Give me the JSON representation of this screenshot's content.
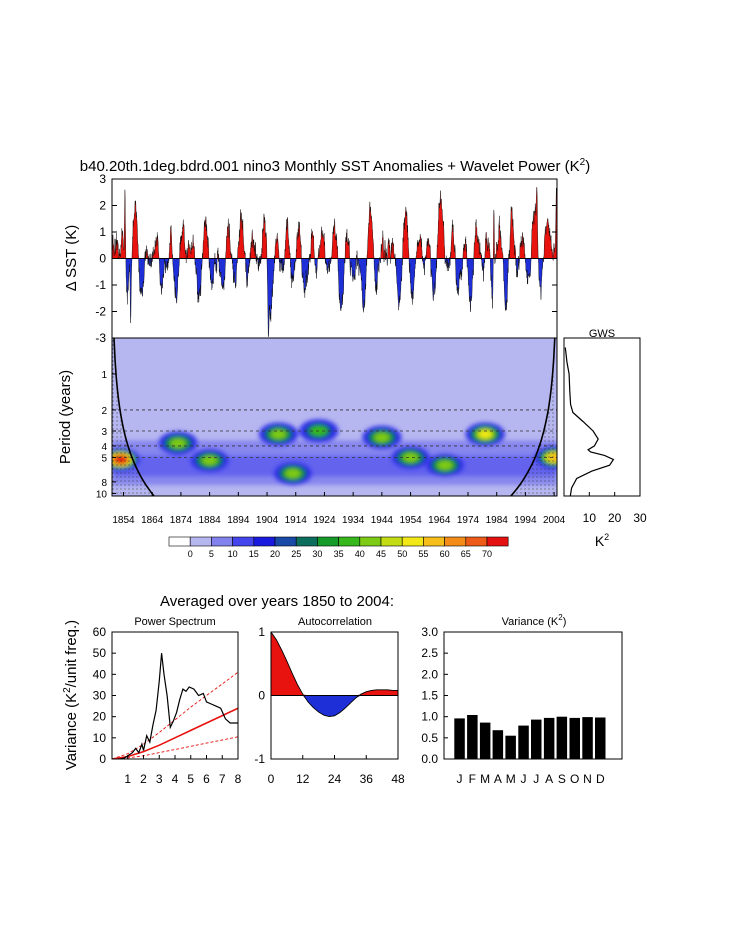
{
  "figure": {
    "title": "b40.20th.1deg.bdrd.001 nino3 Monthly SST Anomalies + Wavelet Power (K",
    "title_sup": "2",
    "title_close": ")",
    "subtitle": "Averaged over years 1850 to 2004:",
    "colors": {
      "positive": "#e8120e",
      "negative": "#1f2fd8",
      "line": "#000000",
      "significance": "#e8120e"
    }
  },
  "chart_data": [
    {
      "id": "sst-timeseries",
      "type": "area",
      "ylabel": "Δ SST (K)",
      "ylim": [
        -3,
        3
      ],
      "yticks": [
        3,
        2,
        1,
        0,
        -1,
        -2,
        -3
      ],
      "xlim": [
        1850,
        2005
      ],
      "note": "Monthly nino3 SST anomalies 1850–2005; red above zero, blue below",
      "notable_peaks": [
        {
          "year": 1854.5,
          "value": 2.95
        },
        {
          "year": 1856.5,
          "value": -2.9
        },
        {
          "year": 1904.5,
          "value": -2.95
        },
        {
          "year": 1983,
          "value": 2.85
        },
        {
          "year": 1998,
          "value": 2.5
        },
        {
          "year": 2004.8,
          "value": 3.0
        }
      ]
    },
    {
      "id": "wavelet-power",
      "type": "heatmap",
      "ylabel": "Period (years)",
      "yticks": [
        "1",
        "2",
        "3",
        "4",
        "5",
        "8",
        "10"
      ],
      "xticks": [
        "1854",
        "1864",
        "1874",
        "1884",
        "1894",
        "1904",
        "1914",
        "1924",
        "1934",
        "1944",
        "1954",
        "1964",
        "1974",
        "1984",
        "1994",
        "2004"
      ],
      "xlim": [
        1850,
        2005
      ],
      "period_range": [
        0.5,
        10.5
      ],
      "dashed_periods": [
        2,
        3,
        4,
        5
      ],
      "note": "Wavelet power (K²) with cone of influence; strongest power at 3–7 yr periods",
      "hotspots": [
        {
          "year": 1853,
          "period": 5.2,
          "power": 75
        },
        {
          "year": 1873,
          "period": 3.8,
          "power": 40
        },
        {
          "year": 1884,
          "period": 5.3,
          "power": 40
        },
        {
          "year": 1908,
          "period": 3.2,
          "power": 40
        },
        {
          "year": 1913,
          "period": 6.8,
          "power": 42
        },
        {
          "year": 1922,
          "period": 3.0,
          "power": 35
        },
        {
          "year": 1944,
          "period": 3.4,
          "power": 40
        },
        {
          "year": 1954,
          "period": 5.0,
          "power": 42
        },
        {
          "year": 1966,
          "period": 5.8,
          "power": 40
        },
        {
          "year": 1980,
          "period": 3.2,
          "power": 50
        },
        {
          "year": 2004,
          "period": 5.0,
          "power": 55
        }
      ]
    },
    {
      "id": "colorbar",
      "type": "heatmap",
      "labels": [
        "0",
        "5",
        "10",
        "15",
        "20",
        "25",
        "30",
        "35",
        "40",
        "45",
        "50",
        "55",
        "60",
        "65",
        "70"
      ],
      "colors": [
        "#ffffff",
        "#b6b6f0",
        "#8282ee",
        "#4545ee",
        "#1a1adf",
        "#1a4aa8",
        "#0e6e5e",
        "#169a2a",
        "#36b81c",
        "#7ecb16",
        "#c3dc14",
        "#f2e818",
        "#f6be1a",
        "#f38c18",
        "#ee5a18",
        "#e51010"
      ]
    },
    {
      "id": "gws",
      "type": "line",
      "title": "GWS",
      "xlabel": "K",
      "xlabel_sup": "2",
      "xticks": [
        "10",
        "20",
        "30"
      ],
      "xlim": [
        0,
        30
      ],
      "x": [
        0.5,
        1.2,
        2.0,
        2.3,
        2.6,
        3.5,
        7.5,
        11.5,
        13.5,
        12.0,
        9.5,
        10.5,
        16.0,
        19.5,
        18.0,
        11.0,
        5.0,
        3.0,
        2.5
      ],
      "periods": [
        0.6,
        0.8,
        1.0,
        1.4,
        1.8,
        2.1,
        2.5,
        3.0,
        3.5,
        4.0,
        4.3,
        4.5,
        4.8,
        5.2,
        5.8,
        6.5,
        7.5,
        9.0,
        10.5
      ]
    },
    {
      "id": "power-spectrum",
      "type": "line",
      "title": "Power Spectrum",
      "ylabel": "Variance (K",
      "ylabel_sup": "2",
      "ylabel_close": "/unit freq.)",
      "xticks": [
        "1",
        "2",
        "3",
        "4",
        "5",
        "6",
        "7",
        "8"
      ],
      "yticks": [
        "60",
        "50",
        "40",
        "30",
        "20",
        "10",
        "0"
      ],
      "xlim": [
        0,
        8
      ],
      "ylim": [
        0,
        60
      ],
      "x": [
        0.5,
        0.8,
        1.0,
        1.3,
        1.5,
        1.7,
        1.9,
        2.0,
        2.2,
        2.4,
        2.6,
        2.8,
        3.0,
        3.15,
        3.3,
        3.5,
        3.7,
        3.9,
        4.1,
        4.3,
        4.5,
        4.7,
        4.9,
        5.2,
        5.5,
        5.8,
        6.0,
        6.3,
        6.6,
        6.9,
        7.2,
        7.5,
        8.0
      ],
      "spectrum": [
        0,
        0.5,
        1.5,
        3,
        5,
        3,
        7,
        4,
        11,
        8,
        16,
        23,
        37,
        50,
        40,
        30,
        15,
        18,
        22,
        28,
        33,
        32,
        34,
        33,
        30,
        31,
        27,
        26,
        25,
        24,
        19,
        17,
        17
      ],
      "red_noise": [
        [
          0,
          0
        ],
        [
          1,
          1.2
        ],
        [
          2,
          3.5
        ],
        [
          3,
          6.5
        ],
        [
          4,
          10
        ],
        [
          5,
          13.5
        ],
        [
          6,
          17
        ],
        [
          7,
          20.5
        ],
        [
          8,
          24
        ]
      ],
      "conf_upper": [
        [
          0,
          0
        ],
        [
          1,
          2.5
        ],
        [
          2,
          7
        ],
        [
          3,
          12.5
        ],
        [
          4,
          18.5
        ],
        [
          5,
          24.5
        ],
        [
          6,
          30
        ],
        [
          7,
          35.5
        ],
        [
          8,
          41
        ]
      ],
      "conf_lower": [
        [
          0,
          0
        ],
        [
          1,
          0.5
        ],
        [
          2,
          1.5
        ],
        [
          3,
          3
        ],
        [
          4,
          4.5
        ],
        [
          5,
          6
        ],
        [
          6,
          7.5
        ],
        [
          7,
          9
        ],
        [
          8,
          10.5
        ]
      ]
    },
    {
      "id": "autocorrelation",
      "type": "area",
      "title": "Autocorrelation",
      "xticks": [
        "0",
        "12",
        "24",
        "36",
        "48"
      ],
      "yticks": [
        "1",
        "0",
        "-1"
      ],
      "xlim": [
        0,
        48
      ],
      "ylim": [
        -1,
        1
      ],
      "x": [
        0,
        2,
        4,
        6,
        8,
        10,
        12,
        14,
        16,
        18,
        20,
        22,
        24,
        26,
        28,
        30,
        32,
        34,
        36,
        38,
        40,
        42,
        44,
        46,
        48
      ],
      "values": [
        1.0,
        0.88,
        0.72,
        0.54,
        0.35,
        0.17,
        0.02,
        -0.1,
        -0.19,
        -0.26,
        -0.31,
        -0.33,
        -0.32,
        -0.27,
        -0.2,
        -0.12,
        -0.04,
        0.02,
        0.06,
        0.08,
        0.09,
        0.09,
        0.09,
        0.08,
        0.08
      ]
    },
    {
      "id": "monthly-variance",
      "type": "bar",
      "title": "Variance (K",
      "title_sup": "2",
      "title_close": ")",
      "categories": [
        "J",
        "F",
        "M",
        "A",
        "M",
        "J",
        "J",
        "A",
        "S",
        "O",
        "N",
        "D"
      ],
      "values": [
        0.96,
        1.04,
        0.86,
        0.68,
        0.55,
        0.79,
        0.93,
        0.97,
        1.0,
        0.97,
        0.99,
        0.98
      ],
      "yticks": [
        "3.0",
        "2.5",
        "2.0",
        "1.5",
        "1.0",
        "0.5",
        "0.0"
      ],
      "ylim": [
        0,
        3
      ]
    }
  ]
}
